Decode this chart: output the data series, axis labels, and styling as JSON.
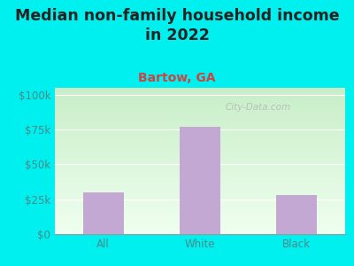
{
  "title": "Median non-family household income\nin 2022",
  "subtitle": "Bartow, GA",
  "categories": [
    "All",
    "White",
    "Black"
  ],
  "values": [
    30000,
    77000,
    28000
  ],
  "bar_color": "#c4a8d4",
  "outer_bg": "#00efef",
  "plot_bg_top": "#c8eec8",
  "plot_bg_bottom": "#f0fff0",
  "title_color": "#222222",
  "subtitle_color": "#cc4444",
  "tick_label_color": "#4a8a8a",
  "grid_color": "#dddddd",
  "yticks": [
    0,
    25000,
    50000,
    75000,
    100000
  ],
  "ytick_labels": [
    "$0",
    "$25k",
    "$50k",
    "$75k",
    "$100k"
  ],
  "ylim": [
    0,
    105000
  ],
  "watermark": "City-Data.com",
  "title_fontsize": 12.5,
  "subtitle_fontsize": 10,
  "tick_fontsize": 8.5
}
